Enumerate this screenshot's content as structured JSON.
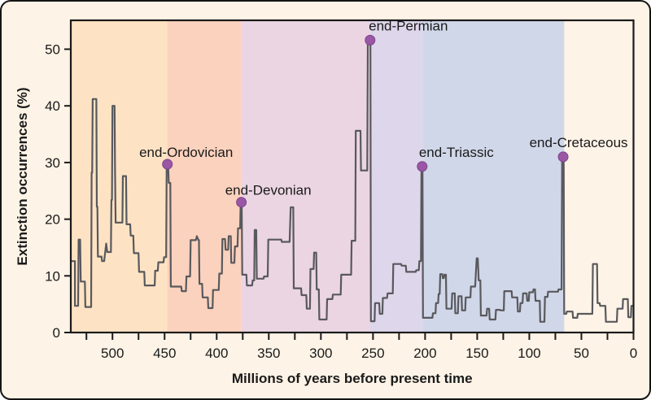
{
  "figure": {
    "background_color": "#fdf3e6",
    "border_color": "#151515"
  },
  "chart_data": {
    "type": "line",
    "title": "",
    "xlabel": "Millions of years before present time",
    "ylabel": "Extinction occurrences (%)",
    "x_axis": {
      "range": [
        540,
        0
      ],
      "major_ticks": [
        500,
        450,
        400,
        350,
        300,
        250,
        200,
        150,
        100,
        50,
        0
      ],
      "minor_tick_step": 25,
      "direction": "reversed"
    },
    "y_axis": {
      "range": [
        0,
        55
      ],
      "ticks": [
        0,
        10,
        20,
        30,
        40,
        50
      ]
    },
    "grid": false,
    "legend": false,
    "line_color": "#59595d",
    "marker_color": "#9a57a5",
    "axis_color": "#1a1a1a",
    "period_bands": [
      {
        "from_ma": 540,
        "to_ma": 447.5,
        "color": "#fde3c4"
      },
      {
        "from_ma": 447.5,
        "to_ma": 376.5,
        "color": "#fbd2be"
      },
      {
        "from_ma": 376.5,
        "to_ma": 253,
        "color": "#ebd5e3"
      },
      {
        "from_ma": 253,
        "to_ma": 202.5,
        "color": "#ded6eb"
      },
      {
        "from_ma": 202.5,
        "to_ma": 66.5,
        "color": "#d0d7e9"
      }
    ],
    "events": [
      {
        "label": "end-Ordovician",
        "ma": 447.3,
        "pct": 29.7
      },
      {
        "label": "end-Devonian",
        "ma": 376.3,
        "pct": 23.0
      },
      {
        "label": "end-Permian",
        "ma": 252.8,
        "pct": 51.6
      },
      {
        "label": "end-Triassic",
        "ma": 202.8,
        "pct": 29.3
      },
      {
        "label": "end-Cretaceous",
        "ma": 67.5,
        "pct": 31.0
      }
    ],
    "series": [
      {
        "name": "Extinction occurrences (%)",
        "points": [
          [
            540,
            12.6
          ],
          [
            536,
            12.6
          ],
          [
            536,
            4.7
          ],
          [
            533,
            4.7
          ],
          [
            532.5,
            16.4
          ],
          [
            531,
            16.4
          ],
          [
            530.5,
            9
          ],
          [
            526.5,
            9
          ],
          [
            526,
            4.5
          ],
          [
            520.5,
            4.5
          ],
          [
            520,
            28.2
          ],
          [
            519.5,
            28.2
          ],
          [
            519,
            41.2
          ],
          [
            515.5,
            41.2
          ],
          [
            515,
            22.2
          ],
          [
            514.5,
            22.2
          ],
          [
            514,
            13.4
          ],
          [
            510.5,
            13.4
          ],
          [
            510,
            12.6
          ],
          [
            508,
            12.6
          ],
          [
            506,
            15.7
          ],
          [
            505,
            14.2
          ],
          [
            501.5,
            14.2
          ],
          [
            501,
            23.4
          ],
          [
            500.5,
            23.4
          ],
          [
            500,
            40
          ],
          [
            498,
            40
          ],
          [
            497.5,
            28.2
          ],
          [
            497,
            19.4
          ],
          [
            490.5,
            19.4
          ],
          [
            490,
            27.6
          ],
          [
            487,
            27.6
          ],
          [
            486.5,
            19.1
          ],
          [
            483,
            19.1
          ],
          [
            482.5,
            17.1
          ],
          [
            480,
            17.1
          ],
          [
            479.5,
            14
          ],
          [
            475,
            14
          ],
          [
            474.5,
            10.7
          ],
          [
            469.5,
            10.7
          ],
          [
            469,
            8.3
          ],
          [
            459.5,
            8.3
          ],
          [
            459,
            10.9
          ],
          [
            456.5,
            10.9
          ],
          [
            456,
            12.4
          ],
          [
            451,
            12.4
          ],
          [
            450.5,
            13.3
          ],
          [
            448.5,
            13.3
          ],
          [
            448,
            29.3
          ],
          [
            446.5,
            29.3
          ],
          [
            446,
            26.4
          ],
          [
            444.5,
            26.4
          ],
          [
            444,
            8.1
          ],
          [
            434,
            8.1
          ],
          [
            433.5,
            7.3
          ],
          [
            429.5,
            7.3
          ],
          [
            429,
            9.9
          ],
          [
            425.5,
            9.9
          ],
          [
            425,
            16.3
          ],
          [
            420,
            16.3
          ],
          [
            419,
            17
          ],
          [
            417.5,
            16.3
          ],
          [
            417,
            16.3
          ],
          [
            416.5,
            8.6
          ],
          [
            414,
            8.6
          ],
          [
            413.5,
            6.2
          ],
          [
            408.5,
            6.2
          ],
          [
            408,
            4.3
          ],
          [
            404,
            4.3
          ],
          [
            403.5,
            7.5
          ],
          [
            398,
            7.5
          ],
          [
            397.5,
            10.4
          ],
          [
            395,
            10.4
          ],
          [
            394.5,
            16.5
          ],
          [
            392,
            16.5
          ],
          [
            391.5,
            14.6
          ],
          [
            389,
            14.6
          ],
          [
            388.5,
            17
          ],
          [
            386.5,
            17
          ],
          [
            386,
            12.3
          ],
          [
            383,
            12.3
          ],
          [
            382.5,
            15.2
          ],
          [
            380,
            15.2
          ],
          [
            379.5,
            18.4
          ],
          [
            377.5,
            18.4
          ],
          [
            377,
            22.7
          ],
          [
            376,
            22.7
          ],
          [
            375.5,
            10.2
          ],
          [
            371.5,
            10.2
          ],
          [
            371,
            8.3
          ],
          [
            366,
            8.3
          ],
          [
            365.5,
            9.2
          ],
          [
            364,
            9.2
          ],
          [
            363.5,
            18.1
          ],
          [
            362,
            18.1
          ],
          [
            361.5,
            9.5
          ],
          [
            355,
            9.5
          ],
          [
            354.5,
            9.9
          ],
          [
            351,
            9.9
          ],
          [
            350.5,
            16.4
          ],
          [
            338,
            16.4
          ],
          [
            337.5,
            16
          ],
          [
            330,
            16
          ],
          [
            329,
            22.1
          ],
          [
            326.5,
            22.1
          ],
          [
            326,
            7.8
          ],
          [
            319,
            7.8
          ],
          [
            318.5,
            6.6
          ],
          [
            314,
            6.6
          ],
          [
            313.5,
            4.2
          ],
          [
            310.5,
            4.2
          ],
          [
            310,
            11.2
          ],
          [
            307,
            11.2
          ],
          [
            306.5,
            14.1
          ],
          [
            304.5,
            14.1
          ],
          [
            304,
            7.6
          ],
          [
            302,
            7.6
          ],
          [
            301.5,
            2.3
          ],
          [
            294.5,
            2.3
          ],
          [
            294,
            5.9
          ],
          [
            289,
            5.9
          ],
          [
            288.5,
            6.7
          ],
          [
            281,
            6.7
          ],
          [
            280.5,
            10.2
          ],
          [
            271,
            10.2
          ],
          [
            270.5,
            16.2
          ],
          [
            267,
            16.2
          ],
          [
            266.5,
            35.6
          ],
          [
            262,
            35.6
          ],
          [
            261.5,
            28.6
          ],
          [
            255.5,
            28.6
          ],
          [
            255,
            51.4
          ],
          [
            252.5,
            51.4
          ],
          [
            252,
            2
          ],
          [
            248.5,
            2
          ],
          [
            248,
            5.2
          ],
          [
            244,
            5.2
          ],
          [
            243.5,
            3.3
          ],
          [
            241,
            3.3
          ],
          [
            240.5,
            6.1
          ],
          [
            236.5,
            6.1
          ],
          [
            236,
            6.9
          ],
          [
            231,
            6.9
          ],
          [
            230.5,
            12.1
          ],
          [
            223,
            12.1
          ],
          [
            222.5,
            11.8
          ],
          [
            218.5,
            11.8
          ],
          [
            218,
            10.7
          ],
          [
            209,
            10.7
          ],
          [
            208.5,
            11
          ],
          [
            206,
            11
          ],
          [
            205.5,
            12.6
          ],
          [
            204,
            12.6
          ],
          [
            203.5,
            28.8
          ],
          [
            202.5,
            28.8
          ],
          [
            202,
            2.6
          ],
          [
            193,
            2.6
          ],
          [
            192.5,
            3.4
          ],
          [
            190,
            3.4
          ],
          [
            189.5,
            5.2
          ],
          [
            187.5,
            5.2
          ],
          [
            187,
            6.8
          ],
          [
            186,
            6.8
          ],
          [
            185.5,
            10.3
          ],
          [
            183.5,
            10.3
          ],
          [
            183,
            9.6
          ],
          [
            182,
            9.6
          ],
          [
            181.5,
            10.2
          ],
          [
            180,
            10.2
          ],
          [
            179.5,
            4.2
          ],
          [
            174.5,
            4.2
          ],
          [
            174,
            6.9
          ],
          [
            171.5,
            6.9
          ],
          [
            171,
            3.4
          ],
          [
            168.5,
            3.4
          ],
          [
            168,
            6.4
          ],
          [
            165,
            6.4
          ],
          [
            164.5,
            3.9
          ],
          [
            161.5,
            3.9
          ],
          [
            161,
            6.2
          ],
          [
            156.5,
            6.2
          ],
          [
            156,
            8.1
          ],
          [
            152,
            8.1
          ],
          [
            150.5,
            13.1
          ],
          [
            149.5,
            13.1
          ],
          [
            148.5,
            9.2
          ],
          [
            147,
            9.2
          ],
          [
            146.5,
            3
          ],
          [
            141,
            3
          ],
          [
            140.5,
            4.2
          ],
          [
            138.5,
            4.2
          ],
          [
            138,
            2.3
          ],
          [
            132.5,
            2.3
          ],
          [
            132,
            4
          ],
          [
            128,
            4
          ],
          [
            127.5,
            3.9
          ],
          [
            124.5,
            3.9
          ],
          [
            124,
            7.3
          ],
          [
            117,
            7.3
          ],
          [
            116.5,
            6.2
          ],
          [
            111.5,
            6.2
          ],
          [
            111,
            3.7
          ],
          [
            109,
            3.7
          ],
          [
            108.5,
            5.2
          ],
          [
            106.5,
            5.2
          ],
          [
            106,
            6.9
          ],
          [
            102.5,
            6.9
          ],
          [
            102,
            5.6
          ],
          [
            100.5,
            5.6
          ],
          [
            100,
            7.1
          ],
          [
            96.5,
            7.1
          ],
          [
            96,
            7.6
          ],
          [
            94.5,
            7.6
          ],
          [
            94,
            5.6
          ],
          [
            90,
            5.6
          ],
          [
            89.5,
            1.9
          ],
          [
            85.5,
            1.9
          ],
          [
            85,
            6.3
          ],
          [
            82.5,
            6.3
          ],
          [
            82,
            7.2
          ],
          [
            72.5,
            7.2
          ],
          [
            72,
            7.6
          ],
          [
            69,
            7.6
          ],
          [
            68.5,
            30.8
          ],
          [
            67,
            30.8
          ],
          [
            66.5,
            3.3
          ],
          [
            64.5,
            3.3
          ],
          [
            64,
            3.7
          ],
          [
            58.5,
            3.7
          ],
          [
            58,
            2.6
          ],
          [
            54,
            2.6
          ],
          [
            53.5,
            3.3
          ],
          [
            39.5,
            3.3
          ],
          [
            39,
            12.1
          ],
          [
            35,
            12.1
          ],
          [
            34.5,
            5.2
          ],
          [
            32.5,
            5.2
          ],
          [
            32,
            4.7
          ],
          [
            27,
            4.7
          ],
          [
            26.5,
            1.9
          ],
          [
            16,
            1.9
          ],
          [
            15.5,
            4.2
          ],
          [
            10.5,
            4.2
          ],
          [
            10,
            5.9
          ],
          [
            5.5,
            5.9
          ],
          [
            5,
            2.7
          ],
          [
            2.5,
            2.7
          ],
          [
            2,
            4.7
          ],
          [
            0,
            4.7
          ]
        ]
      }
    ]
  }
}
